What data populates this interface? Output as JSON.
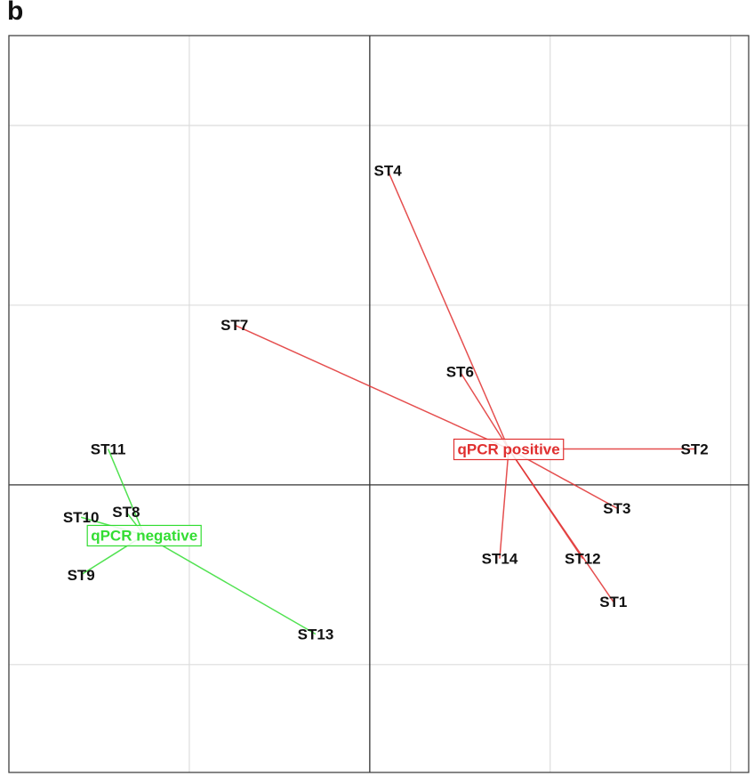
{
  "panel_label": "b",
  "chart_data": {
    "type": "scatter",
    "title": "",
    "xlabel": "",
    "ylabel": "",
    "xlim": [
      -2.0,
      2.1
    ],
    "ylim": [
      -1.6,
      2.5
    ],
    "grid": true,
    "grid_step": 1,
    "axes_at_origin": true,
    "groups": [
      {
        "name": "qPCR negative",
        "color": "#33dd33",
        "centroid": {
          "x": -1.25,
          "y": -0.28
        },
        "points": [
          {
            "label": "ST8",
            "x": -1.35,
            "y": -0.15
          },
          {
            "label": "ST9",
            "x": -1.6,
            "y": -0.5
          },
          {
            "label": "ST10",
            "x": -1.6,
            "y": -0.18
          },
          {
            "label": "ST11",
            "x": -1.45,
            "y": 0.2
          },
          {
            "label": "ST13",
            "x": -0.3,
            "y": -0.83
          }
        ]
      },
      {
        "name": "qPCR positive",
        "color": "#e03030",
        "centroid": {
          "x": 0.77,
          "y": 0.2
        },
        "points": [
          {
            "label": "ST1",
            "x": 1.35,
            "y": -0.65
          },
          {
            "label": "ST2",
            "x": 1.8,
            "y": 0.2
          },
          {
            "label": "ST3",
            "x": 1.37,
            "y": -0.13
          },
          {
            "label": "ST4",
            "x": 0.1,
            "y": 1.75
          },
          {
            "label": "ST6",
            "x": 0.5,
            "y": 0.63
          },
          {
            "label": "ST7",
            "x": -0.75,
            "y": 0.89
          },
          {
            "label": "ST12",
            "x": 1.18,
            "y": -0.41
          },
          {
            "label": "ST14",
            "x": 0.72,
            "y": -0.41
          }
        ]
      }
    ]
  }
}
